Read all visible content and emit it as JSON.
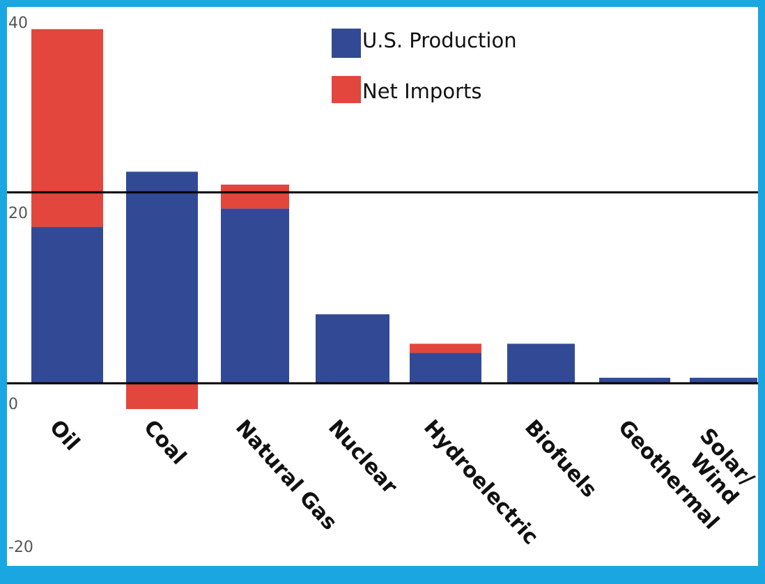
{
  "colors": {
    "production": "#324a96",
    "imports": "#e2463d",
    "frame": "#1aa6e0"
  },
  "chart_data": {
    "type": "bar",
    "stacked": true,
    "categories": [
      "Oil",
      "Coal",
      "Natural Gas",
      "Nuclear",
      "Hydroelectric",
      "Biofuels",
      "Geothermal",
      "Solar/ Wind"
    ],
    "series": [
      {
        "name": "U.S. Production",
        "values": [
          17.0,
          23.0,
          19.0,
          7.5,
          3.3,
          4.3,
          0.6,
          0.6
        ]
      },
      {
        "name": "Net Imports",
        "values": [
          21.5,
          -2.8,
          2.6,
          0.0,
          1.0,
          0.0,
          0.0,
          0.0
        ]
      }
    ],
    "yticks": [
      "40",
      "20",
      "0",
      "-20"
    ],
    "ylim": [
      -20,
      40
    ],
    "legend_position": "top-center",
    "grid": false
  }
}
